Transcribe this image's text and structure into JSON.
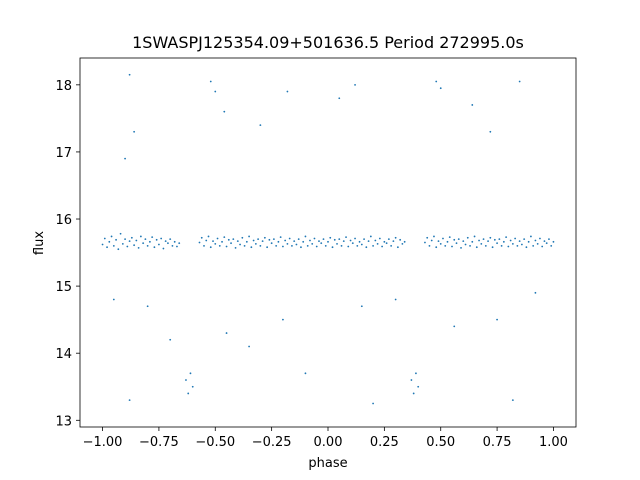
{
  "chart_data": {
    "type": "scatter",
    "title": "1SWASPJ125354.09+501636.5 Period 272995.0s",
    "xlabel": "phase",
    "ylabel": "flux",
    "xlim": [
      -1.1,
      1.1
    ],
    "ylim": [
      12.9,
      18.4
    ],
    "grid": false,
    "point_color": "#1f77b4",
    "x_ticks": [
      -1.0,
      -0.75,
      -0.5,
      -0.25,
      0.0,
      0.25,
      0.5,
      0.75,
      1.0
    ],
    "x_tick_labels": [
      "−1.00",
      "−0.75",
      "−0.50",
      "−0.25",
      "0.00",
      "0.25",
      "0.50",
      "0.75",
      "1.00"
    ],
    "y_ticks": [
      13,
      14,
      15,
      16,
      17,
      18
    ],
    "y_tick_labels": [
      "13",
      "14",
      "15",
      "16",
      "17",
      "18"
    ],
    "description": "Phase-folded light curve; dense baseline band near flux 15.7 across phase -1.0 to 1.0, with eclipse dips reaching about 13.3 near phase -0.62 and 0.38, gaps in coverage near phase -0.62 and 0.38, and sparse scatter up to about 18.1.",
    "series": [
      {
        "values_summary": "baseline cluster",
        "x_range": [
          -1.0,
          1.0
        ],
        "y_center": 15.65,
        "y_spread": 0.22
      },
      {
        "values_summary": "eclipse dip 1",
        "x_range": [
          -0.64,
          -0.58
        ],
        "y_range": [
          13.2,
          14.2
        ]
      },
      {
        "values_summary": "eclipse dip 2",
        "x_range": [
          0.36,
          0.42
        ],
        "y_range": [
          13.2,
          14.2
        ]
      }
    ],
    "points": [
      [
        -1.0,
        15.62
      ],
      [
        -0.99,
        15.71
      ],
      [
        -0.98,
        15.58
      ],
      [
        -0.97,
        15.66
      ],
      [
        -0.96,
        15.74
      ],
      [
        -0.95,
        15.6
      ],
      [
        -0.94,
        15.69
      ],
      [
        -0.93,
        15.55
      ],
      [
        -0.92,
        15.78
      ],
      [
        -0.91,
        15.63
      ],
      [
        -0.9,
        15.7
      ],
      [
        -0.89,
        15.59
      ],
      [
        -0.88,
        15.67
      ],
      [
        -0.87,
        15.72
      ],
      [
        -0.86,
        15.61
      ],
      [
        -0.85,
        15.68
      ],
      [
        -0.84,
        15.57
      ],
      [
        -0.83,
        15.74
      ],
      [
        -0.82,
        15.64
      ],
      [
        -0.81,
        15.7
      ],
      [
        -0.8,
        15.6
      ],
      [
        -0.79,
        15.66
      ],
      [
        -0.78,
        15.73
      ],
      [
        -0.77,
        15.58
      ],
      [
        -0.76,
        15.69
      ],
      [
        -0.75,
        15.62
      ],
      [
        -0.74,
        15.71
      ],
      [
        -0.73,
        15.56
      ],
      [
        -0.72,
        15.67
      ],
      [
        -0.71,
        15.64
      ],
      [
        -0.7,
        15.7
      ],
      [
        -0.69,
        15.6
      ],
      [
        -0.68,
        15.66
      ],
      [
        -0.67,
        15.59
      ],
      [
        -0.66,
        15.64
      ],
      [
        -0.63,
        13.6
      ],
      [
        -0.62,
        13.4
      ],
      [
        -0.61,
        13.7
      ],
      [
        -0.6,
        13.5
      ],
      [
        -0.57,
        15.65
      ],
      [
        -0.56,
        15.72
      ],
      [
        -0.55,
        15.6
      ],
      [
        -0.54,
        15.68
      ],
      [
        -0.53,
        15.74
      ],
      [
        -0.52,
        15.58
      ],
      [
        -0.51,
        15.67
      ],
      [
        -0.5,
        15.63
      ],
      [
        -0.49,
        15.71
      ],
      [
        -0.48,
        15.6
      ],
      [
        -0.47,
        15.66
      ],
      [
        -0.46,
        15.73
      ],
      [
        -0.45,
        15.59
      ],
      [
        -0.44,
        15.69
      ],
      [
        -0.43,
        15.64
      ],
      [
        -0.42,
        15.7
      ],
      [
        -0.41,
        15.57
      ],
      [
        -0.4,
        15.67
      ],
      [
        -0.39,
        15.62
      ],
      [
        -0.38,
        15.72
      ],
      [
        -0.37,
        15.6
      ],
      [
        -0.36,
        15.66
      ],
      [
        -0.35,
        15.74
      ],
      [
        -0.34,
        15.58
      ],
      [
        -0.33,
        15.68
      ],
      [
        -0.32,
        15.63
      ],
      [
        -0.31,
        15.7
      ],
      [
        -0.3,
        15.6
      ],
      [
        -0.29,
        15.67
      ],
      [
        -0.28,
        15.72
      ],
      [
        -0.27,
        15.58
      ],
      [
        -0.26,
        15.69
      ],
      [
        -0.25,
        15.64
      ],
      [
        -0.24,
        15.7
      ],
      [
        -0.23,
        15.6
      ],
      [
        -0.22,
        15.66
      ],
      [
        -0.21,
        15.73
      ],
      [
        -0.2,
        15.59
      ],
      [
        -0.19,
        15.68
      ],
      [
        -0.18,
        15.63
      ],
      [
        -0.17,
        15.71
      ],
      [
        -0.16,
        15.6
      ],
      [
        -0.15,
        15.67
      ],
      [
        -0.14,
        15.62
      ],
      [
        -0.13,
        15.7
      ],
      [
        -0.12,
        15.58
      ],
      [
        -0.11,
        15.66
      ],
      [
        -0.1,
        15.74
      ],
      [
        -0.09,
        15.6
      ],
      [
        -0.08,
        15.68
      ],
      [
        -0.07,
        15.63
      ],
      [
        -0.06,
        15.71
      ],
      [
        -0.05,
        15.59
      ],
      [
        -0.04,
        15.67
      ],
      [
        -0.03,
        15.64
      ],
      [
        -0.02,
        15.7
      ],
      [
        -0.01,
        15.6
      ],
      [
        0.0,
        15.66
      ],
      [
        0.01,
        15.72
      ],
      [
        0.02,
        15.58
      ],
      [
        0.03,
        15.69
      ],
      [
        0.04,
        15.63
      ],
      [
        0.05,
        15.7
      ],
      [
        0.06,
        15.6
      ],
      [
        0.07,
        15.67
      ],
      [
        0.08,
        15.73
      ],
      [
        0.09,
        15.59
      ],
      [
        0.1,
        15.68
      ],
      [
        0.11,
        15.64
      ],
      [
        0.12,
        15.71
      ],
      [
        0.13,
        15.6
      ],
      [
        0.14,
        15.66
      ],
      [
        0.15,
        15.62
      ],
      [
        0.16,
        15.7
      ],
      [
        0.17,
        15.58
      ],
      [
        0.18,
        15.67
      ],
      [
        0.19,
        15.74
      ],
      [
        0.2,
        15.6
      ],
      [
        0.21,
        15.68
      ],
      [
        0.22,
        15.63
      ],
      [
        0.23,
        15.71
      ],
      [
        0.24,
        15.59
      ],
      [
        0.25,
        15.66
      ],
      [
        0.26,
        15.64
      ],
      [
        0.27,
        15.7
      ],
      [
        0.28,
        15.6
      ],
      [
        0.29,
        15.67
      ],
      [
        0.3,
        15.72
      ],
      [
        0.31,
        15.58
      ],
      [
        0.32,
        15.69
      ],
      [
        0.33,
        15.63
      ],
      [
        0.34,
        15.66
      ],
      [
        0.37,
        13.6
      ],
      [
        0.38,
        13.4
      ],
      [
        0.39,
        13.7
      ],
      [
        0.4,
        13.5
      ],
      [
        0.43,
        15.65
      ],
      [
        0.44,
        15.72
      ],
      [
        0.45,
        15.6
      ],
      [
        0.46,
        15.68
      ],
      [
        0.47,
        15.74
      ],
      [
        0.48,
        15.58
      ],
      [
        0.49,
        15.67
      ],
      [
        0.5,
        15.63
      ],
      [
        0.51,
        15.71
      ],
      [
        0.52,
        15.6
      ],
      [
        0.53,
        15.66
      ],
      [
        0.54,
        15.73
      ],
      [
        0.55,
        15.59
      ],
      [
        0.56,
        15.69
      ],
      [
        0.57,
        15.64
      ],
      [
        0.58,
        15.7
      ],
      [
        0.59,
        15.57
      ],
      [
        0.6,
        15.67
      ],
      [
        0.61,
        15.62
      ],
      [
        0.62,
        15.72
      ],
      [
        0.63,
        15.6
      ],
      [
        0.64,
        15.66
      ],
      [
        0.65,
        15.74
      ],
      [
        0.66,
        15.58
      ],
      [
        0.67,
        15.68
      ],
      [
        0.68,
        15.63
      ],
      [
        0.69,
        15.7
      ],
      [
        0.7,
        15.6
      ],
      [
        0.71,
        15.67
      ],
      [
        0.72,
        15.72
      ],
      [
        0.73,
        15.58
      ],
      [
        0.74,
        15.69
      ],
      [
        0.75,
        15.64
      ],
      [
        0.76,
        15.7
      ],
      [
        0.77,
        15.6
      ],
      [
        0.78,
        15.66
      ],
      [
        0.79,
        15.73
      ],
      [
        0.8,
        15.59
      ],
      [
        0.81,
        15.68
      ],
      [
        0.82,
        15.63
      ],
      [
        0.83,
        15.71
      ],
      [
        0.84,
        15.6
      ],
      [
        0.85,
        15.67
      ],
      [
        0.86,
        15.62
      ],
      [
        0.87,
        15.7
      ],
      [
        0.88,
        15.58
      ],
      [
        0.89,
        15.66
      ],
      [
        0.9,
        15.74
      ],
      [
        0.91,
        15.6
      ],
      [
        0.92,
        15.68
      ],
      [
        0.93,
        15.63
      ],
      [
        0.94,
        15.71
      ],
      [
        0.95,
        15.59
      ],
      [
        0.96,
        15.67
      ],
      [
        0.97,
        15.64
      ],
      [
        0.98,
        15.7
      ],
      [
        0.99,
        15.6
      ],
      [
        1.0,
        15.66
      ],
      [
        -0.88,
        18.15
      ],
      [
        -0.86,
        17.3
      ],
      [
        -0.9,
        16.9
      ],
      [
        -0.52,
        18.05
      ],
      [
        -0.5,
        17.9
      ],
      [
        -0.46,
        17.6
      ],
      [
        -0.3,
        17.4
      ],
      [
        -0.18,
        17.9
      ],
      [
        0.05,
        17.8
      ],
      [
        0.12,
        18.0
      ],
      [
        0.48,
        18.05
      ],
      [
        0.5,
        17.95
      ],
      [
        0.64,
        17.7
      ],
      [
        0.72,
        17.3
      ],
      [
        0.85,
        18.05
      ],
      [
        -0.8,
        14.7
      ],
      [
        -0.7,
        14.2
      ],
      [
        -0.45,
        14.3
      ],
      [
        -0.2,
        14.5
      ],
      [
        0.15,
        14.7
      ],
      [
        0.3,
        14.8
      ],
      [
        0.56,
        14.4
      ],
      [
        0.75,
        14.5
      ],
      [
        0.92,
        14.9
      ],
      [
        -0.95,
        14.8
      ],
      [
        -0.88,
        13.3
      ],
      [
        -0.1,
        13.7
      ],
      [
        0.2,
        13.25
      ],
      [
        0.82,
        13.3
      ],
      [
        -0.35,
        14.1
      ]
    ]
  }
}
